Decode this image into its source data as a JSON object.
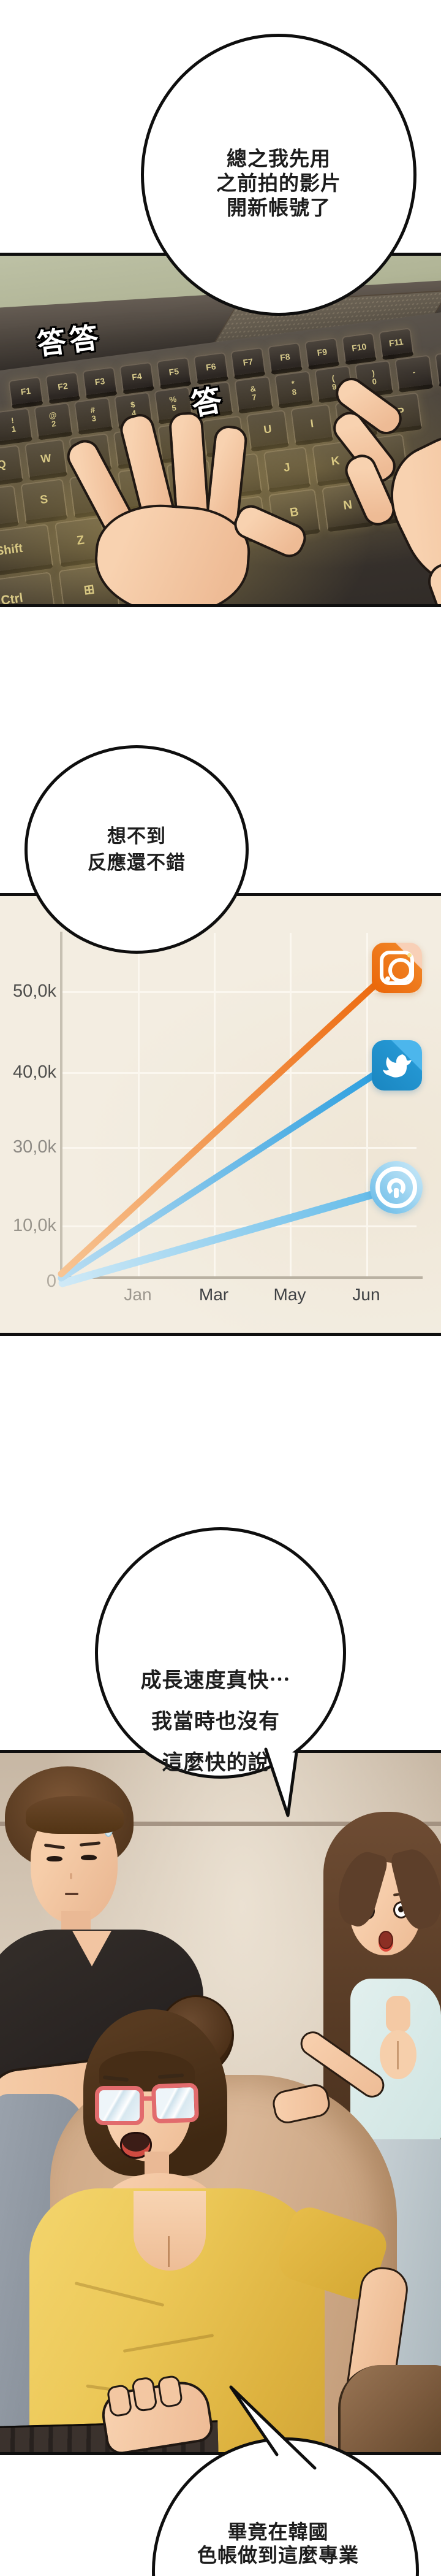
{
  "comic": {
    "bubbles": {
      "b1": {
        "lines": [
          "總之我先用",
          "之前拍的影片",
          "開新帳號了"
        ]
      },
      "b2": {
        "lines": [
          "想不到",
          "反應還不錯"
        ]
      },
      "b3": {
        "lines": [
          "成長速度真快⋯",
          "我當時也沒有",
          "這麼快的說"
        ]
      },
      "b4": {
        "lines": [
          "畢竟在韓國",
          "色帳做到這麼專業"
        ]
      }
    },
    "sfx": {
      "typing_pair": "答答",
      "typing_single": "答"
    }
  },
  "keyboard": {
    "rows": [
      [
        "F1",
        "F2",
        "F3",
        "F4",
        "F5",
        "F6",
        "F7",
        "F8",
        "F9",
        "F10",
        "F11"
      ],
      [
        "!\n1",
        "@\n2",
        "#\n3",
        "$\n4",
        "%\n5",
        "^\n6",
        "&\n7",
        "*\n8",
        "(\n9",
        ")\n0",
        "-",
        "="
      ],
      [
        "Q",
        "W",
        "E",
        "R",
        "T",
        "Y",
        "U",
        "I",
        "O",
        "P"
      ],
      [
        "A",
        "S",
        "D",
        "F",
        "G",
        "H",
        "J",
        "K",
        "L"
      ],
      [
        "Shift",
        "Z",
        "X",
        "C",
        "V",
        "B",
        "N",
        "M"
      ],
      [
        "Ctrl",
        "⊞"
      ]
    ]
  },
  "chart_data": {
    "type": "line",
    "title": "",
    "x_tick_labels": [
      "Jan",
      "Mar",
      "May",
      "Jun"
    ],
    "y_tick_labels": [
      "50,0k",
      "40,0k",
      "30,0k",
      "10,0k",
      "0"
    ],
    "ylim": [
      0,
      55000
    ],
    "grid": true,
    "legend_position": "app icons at line ends",
    "series": [
      {
        "name": "instagram-camera-app",
        "color": "#ed6f12",
        "points": [
          [
            "start",
            0
          ],
          [
            "Jun",
            53000
          ]
        ]
      },
      {
        "name": "blue-bird-app",
        "color": "#2d9fdf",
        "points": [
          [
            "start",
            0
          ],
          [
            "Jun",
            41000
          ]
        ]
      },
      {
        "name": "round-power-app",
        "color": "#66bce9",
        "points": [
          [
            "start",
            0
          ],
          [
            "Jun",
            18000
          ]
        ]
      }
    ]
  },
  "icons": {
    "instagram": "camera-app-icon",
    "bird": "bird-app-icon",
    "round": "power-circle-app-icon"
  },
  "colors": {
    "panel_border": "#0f0f0f",
    "chart_bg": "#f3ede1",
    "orange_line": "#ed6f12",
    "blue_line": "#2d9fdf",
    "light_blue_line": "#66bce9",
    "sfx_fill": "#ffffff",
    "sfx_outline": "#000000",
    "shirt_yellow": "#ecc858",
    "top_light_blue": "#dbeceb"
  }
}
